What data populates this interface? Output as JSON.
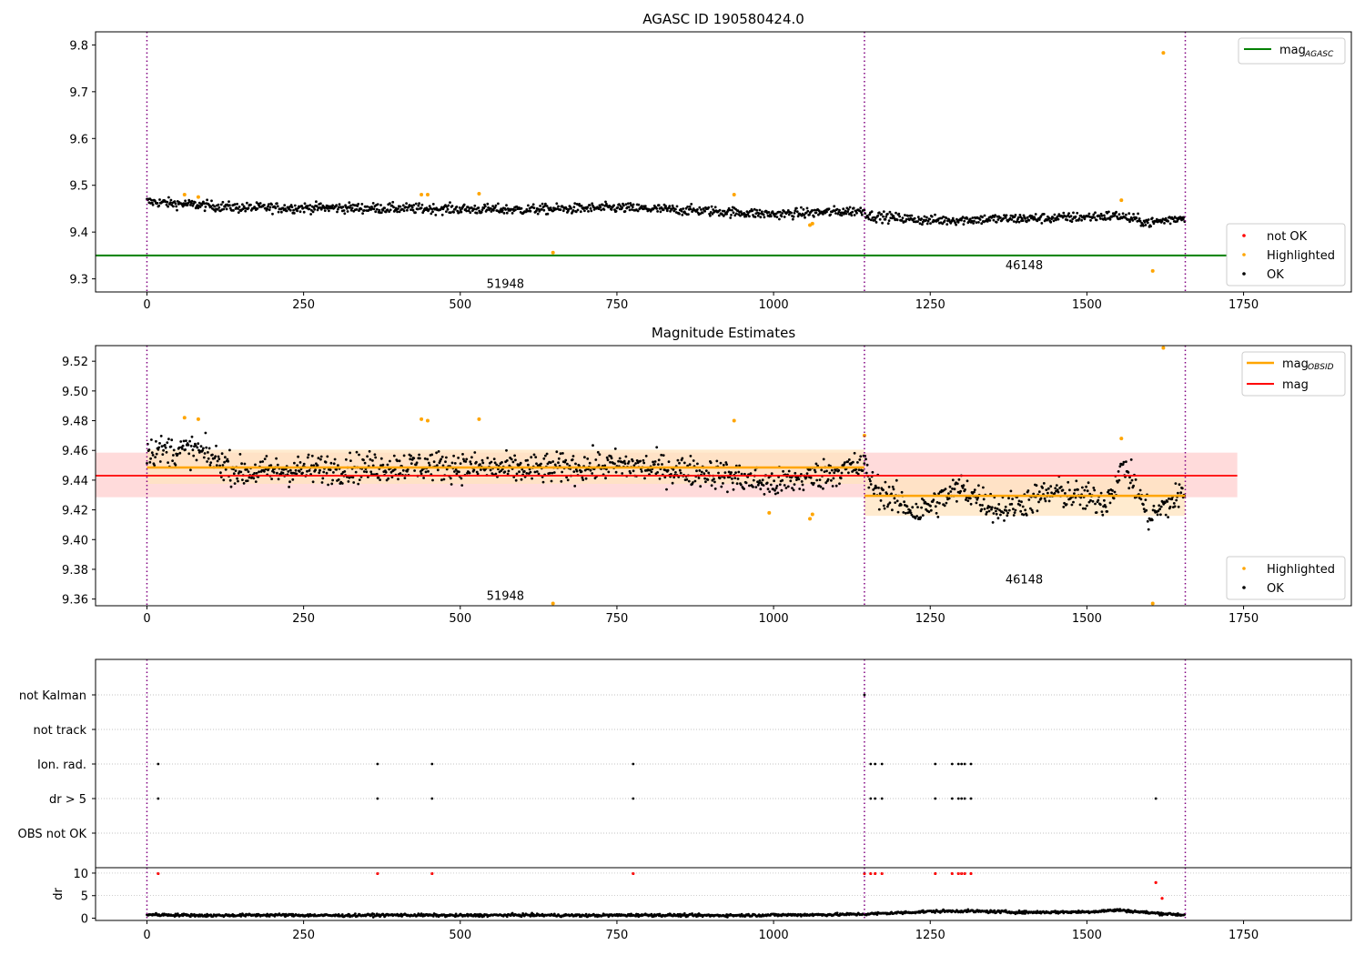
{
  "chart_data": [
    {
      "type": "scatter",
      "title": "AGASC ID 190580424.0",
      "xlim": [
        -82,
        1922
      ],
      "ylim": [
        9.272,
        9.828
      ],
      "x_ticks": [
        "0",
        "250",
        "500",
        "750",
        "1000",
        "1250",
        "1500",
        "1750"
      ],
      "y_ticks": [
        "9.3",
        "9.4",
        "9.5",
        "9.6",
        "9.7",
        "9.8"
      ],
      "obsid_boundaries": [
        0,
        1145,
        1657
      ],
      "obsid_labels": [
        {
          "text": "51948",
          "x": 572,
          "y": 9.29
        },
        {
          "text": "46148",
          "x": 1400,
          "y": 9.33
        }
      ],
      "mag_agasc": 9.35,
      "mag_agasc_x_end": 1810,
      "legend": [
        "mag",
        "AGASC",
        "not OK",
        "Highlighted",
        "OK"
      ],
      "ok_trend": [
        [
          0,
          9.465
        ],
        [
          150,
          9.452
        ],
        [
          300,
          9.452
        ],
        [
          450,
          9.45
        ],
        [
          600,
          9.448
        ],
        [
          750,
          9.452
        ],
        [
          900,
          9.445
        ],
        [
          1000,
          9.438
        ],
        [
          1145,
          9.446
        ],
        [
          1150,
          9.435
        ],
        [
          1250,
          9.425
        ],
        [
          1350,
          9.428
        ],
        [
          1450,
          9.43
        ],
        [
          1550,
          9.435
        ],
        [
          1600,
          9.42
        ],
        [
          1657,
          9.432
        ]
      ],
      "ok_noise": 0.009,
      "highlighted": [
        [
          60,
          9.48
        ],
        [
          82,
          9.475
        ],
        [
          438,
          9.48
        ],
        [
          448,
          9.48
        ],
        [
          530,
          9.482
        ],
        [
          648,
          9.356
        ],
        [
          937,
          9.48
        ],
        [
          1058,
          9.415
        ],
        [
          1062,
          9.418
        ],
        [
          1555,
          9.468
        ],
        [
          1605,
          9.317
        ],
        [
          1622,
          9.783
        ]
      ],
      "not_ok": [],
      "series_names": [
        "mag",
        "not OK",
        "Highlighted",
        "OK"
      ]
    },
    {
      "type": "scatter",
      "title": "Magnitude Estimates",
      "xlim": [
        -82,
        1922
      ],
      "ylim": [
        9.3555,
        9.5305
      ],
      "x_ticks": [
        "0",
        "250",
        "500",
        "750",
        "1000",
        "1250",
        "1500",
        "1750"
      ],
      "y_ticks": [
        "9.36",
        "9.38",
        "9.40",
        "9.42",
        "9.44",
        "9.46",
        "9.48",
        "9.50",
        "9.52"
      ],
      "obsid_boundaries": [
        0,
        1145,
        1657
      ],
      "obsid_labels": [
        {
          "text": "51948",
          "x": 572,
          "y": 9.3625
        },
        {
          "text": "46148",
          "x": 1400,
          "y": 9.3735
        }
      ],
      "mag": 9.443,
      "mag_band": [
        9.4285,
        9.4585
      ],
      "mag_x_range": [
        -82,
        1740
      ],
      "mag_obsid": [
        {
          "x0": 0,
          "x1": 1145,
          "value": 9.4485,
          "band": [
            9.4375,
            9.4605
          ]
        },
        {
          "x0": 1145,
          "x1": 1657,
          "value": 9.4295,
          "band": [
            9.416,
            9.442
          ]
        }
      ],
      "legend": [
        "mag",
        "OBSID",
        "mag",
        "Highlighted",
        "OK"
      ],
      "ok_trend": [
        [
          0,
          9.46
        ],
        [
          80,
          9.46
        ],
        [
          150,
          9.445
        ],
        [
          300,
          9.448
        ],
        [
          450,
          9.45
        ],
        [
          600,
          9.447
        ],
        [
          750,
          9.45
        ],
        [
          900,
          9.445
        ],
        [
          1000,
          9.437
        ],
        [
          1145,
          9.45
        ],
        [
          1160,
          9.435
        ],
        [
          1230,
          9.418
        ],
        [
          1300,
          9.435
        ],
        [
          1360,
          9.42
        ],
        [
          1450,
          9.432
        ],
        [
          1530,
          9.425
        ],
        [
          1560,
          9.45
        ],
        [
          1600,
          9.415
        ],
        [
          1657,
          9.432
        ]
      ],
      "ok_noise": 0.0085,
      "highlighted": [
        [
          60,
          9.482
        ],
        [
          82,
          9.481
        ],
        [
          438,
          9.481
        ],
        [
          448,
          9.48
        ],
        [
          530,
          9.481
        ],
        [
          648,
          9.357
        ],
        [
          937,
          9.48
        ],
        [
          993,
          9.418
        ],
        [
          1058,
          9.414
        ],
        [
          1062,
          9.417
        ],
        [
          1145,
          9.47
        ],
        [
          1555,
          9.468
        ],
        [
          1605,
          9.357
        ],
        [
          1622,
          9.529
        ]
      ],
      "series_names": [
        "mag",
        "mag",
        "Highlighted",
        "OK"
      ]
    },
    {
      "type": "scatter",
      "title": "",
      "xlim": [
        -82,
        1922
      ],
      "categories": [
        "not Kalman",
        "not track",
        "Ion. rad.",
        "dr > 5",
        "OBS not OK"
      ],
      "obsid_boundaries": [
        0,
        1145,
        1657
      ],
      "flag_points": {
        "not Kalman": [
          1145
        ],
        "not track": [],
        "Ion. rad.": [
          18,
          368,
          455,
          776,
          1155,
          1162,
          1173,
          1258,
          1285,
          1295,
          1300,
          1305,
          1315
        ],
        "dr > 5": [
          18,
          368,
          455,
          776,
          1155,
          1162,
          1173,
          1258,
          1285,
          1295,
          1300,
          1305,
          1315,
          1610
        ],
        "OBS not OK": []
      }
    },
    {
      "type": "scatter",
      "title": "",
      "xlim": [
        -82,
        1922
      ],
      "ylim": [
        -0.5,
        11.2
      ],
      "ylabel": "dr",
      "x_ticks": [
        "0",
        "250",
        "500",
        "750",
        "1000",
        "1250",
        "1500",
        "1750"
      ],
      "y_ticks": [
        "0",
        "5",
        "10"
      ],
      "obsid_boundaries": [
        0,
        1145,
        1657
      ],
      "dr_trend": [
        [
          0,
          0.8
        ],
        [
          100,
          0.6
        ],
        [
          200,
          0.7
        ],
        [
          300,
          0.6
        ],
        [
          400,
          0.7
        ],
        [
          500,
          0.6
        ],
        [
          600,
          0.7
        ],
        [
          700,
          0.6
        ],
        [
          800,
          0.7
        ],
        [
          900,
          0.6
        ],
        [
          1000,
          0.7
        ],
        [
          1100,
          0.8
        ],
        [
          1145,
          0.9
        ],
        [
          1200,
          1.2
        ],
        [
          1250,
          1.5
        ],
        [
          1300,
          1.6
        ],
        [
          1400,
          1.3
        ],
        [
          1500,
          1.4
        ],
        [
          1550,
          1.8
        ],
        [
          1600,
          1.2
        ],
        [
          1657,
          0.7
        ]
      ],
      "dr_noise": 0.25,
      "dr_red_points": [
        [
          18,
          9.9
        ],
        [
          368,
          9.9
        ],
        [
          455,
          9.9
        ],
        [
          776,
          9.9
        ],
        [
          1145,
          9.9
        ],
        [
          1155,
          9.9
        ],
        [
          1162,
          9.9
        ],
        [
          1173,
          9.9
        ],
        [
          1258,
          9.9
        ],
        [
          1285,
          9.9
        ],
        [
          1295,
          9.9
        ],
        [
          1300,
          9.9
        ],
        [
          1305,
          9.9
        ],
        [
          1315,
          9.9
        ],
        [
          1610,
          7.9
        ],
        [
          1620,
          4.4
        ]
      ]
    }
  ],
  "colors": {
    "ok": "#000000",
    "highlighted": "#ffa500",
    "not_ok": "#ff0000",
    "mag_agasc": "#008000",
    "mag_obsid": "#ffa500",
    "mag": "#ff0000",
    "mag_band": "#ffcccc",
    "obsid_band": "#ffe4bf",
    "obsid_line": "#800080",
    "grid": "#b0b0b0"
  }
}
